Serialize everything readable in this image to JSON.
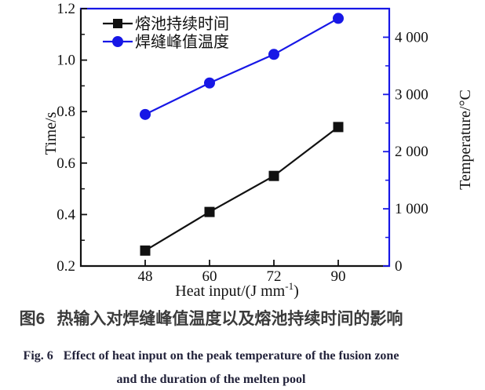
{
  "figure": {
    "caption_zh": {
      "prefix": "图6",
      "text": "热输入对焊缝峰值温度以及熔池持续时间的影响"
    },
    "caption_en": {
      "prefix": "Fig. 6",
      "line1": "Effect of heat input on the peak temperature of the fusion zone",
      "line2": "and the duration of the melten pool"
    }
  },
  "chart_data": {
    "type": "line",
    "grid": false,
    "categories": [
      48,
      60,
      72,
      90
    ],
    "x_tick_labels": [
      "48",
      "60",
      "72",
      "90"
    ],
    "xlabel": {
      "text": "Heat input/(J mm⁻¹)",
      "prefix": "Heat input/(J mm",
      "sup": "-1",
      "suffix": ")"
    },
    "ylabel_left": "Time/s",
    "ylabel_right": "Temperature/°C",
    "left_axis": {
      "range": [
        0.2,
        1.2
      ],
      "ticks": [
        0.2,
        0.4,
        0.6,
        0.8,
        1.0,
        1.2
      ],
      "tick_labels": [
        "0.2",
        "0.4",
        "0.6",
        "0.8",
        "1.0",
        "1.2"
      ],
      "minor_ticks": [
        0.3,
        0.5,
        0.7,
        0.9,
        1.1
      ],
      "color": "#111111"
    },
    "right_axis": {
      "range": [
        0,
        4500
      ],
      "ticks": [
        0,
        1000,
        2000,
        3000,
        4000
      ],
      "tick_labels": [
        "0",
        "1 000",
        "2 000",
        "3 000",
        "4 000"
      ],
      "minor_ticks": [
        500,
        1500,
        2500,
        3500
      ],
      "color": "#1717e6"
    },
    "legend": {
      "position": "top-left"
    },
    "series": [
      {
        "name": "熔池持续时间",
        "axis": "left",
        "marker": "square",
        "color": "#111111",
        "values": [
          0.26,
          0.41,
          0.55,
          0.74
        ]
      },
      {
        "name": "焊缝峰值温度",
        "axis": "right",
        "marker": "circle",
        "color": "#1717e6",
        "values": [
          2650,
          3200,
          3700,
          4330
        ]
      }
    ]
  }
}
